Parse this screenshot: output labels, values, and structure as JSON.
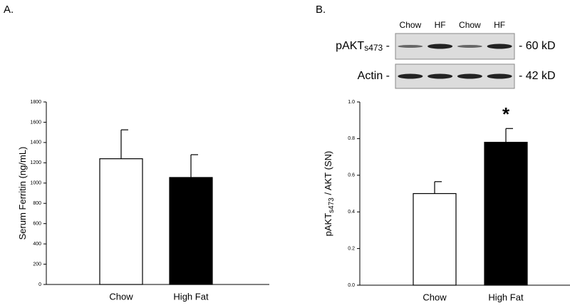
{
  "chart_data": [
    {
      "type": "bar",
      "panel_label": "A.",
      "ylabel_parts": [
        "Serum Ferritin (ng/mL)"
      ],
      "categories": [
        "Chow",
        "High Fat"
      ],
      "values": [
        1240,
        1055
      ],
      "errors": [
        285,
        225
      ],
      "colors": [
        "#ffffff",
        "#000000"
      ],
      "ylim": [
        0,
        1800
      ],
      "yticks": [
        0,
        200,
        400,
        600,
        800,
        1000,
        1200,
        1400,
        1600,
        1800
      ]
    },
    {
      "type": "bar",
      "panel_label": "B.",
      "ylabel_parts": [
        "pAKT",
        "s473",
        " / AKT (SN)"
      ],
      "categories": [
        "Chow",
        "High Fat"
      ],
      "values": [
        0.5,
        0.78
      ],
      "errors": [
        0.065,
        0.075
      ],
      "colors": [
        "#ffffff",
        "#000000"
      ],
      "annotation": "*",
      "ylim": [
        0,
        1
      ],
      "yticks": [
        {
          "value": 0,
          "label": "0.0"
        },
        0.2,
        0.4,
        0.6,
        0.8,
        {
          "value": 1,
          "label": "1.0"
        }
      ],
      "blot": {
        "lanes": [
          "Chow",
          "HF",
          "Chow",
          "HF"
        ],
        "bands": [
          {
            "protein": "pAKT",
            "subscript": "s473",
            "marker": "- 60 kD"
          },
          {
            "protein": "Actin -",
            "subscript": "",
            "marker": "- 42 kD"
          }
        ]
      }
    }
  ]
}
